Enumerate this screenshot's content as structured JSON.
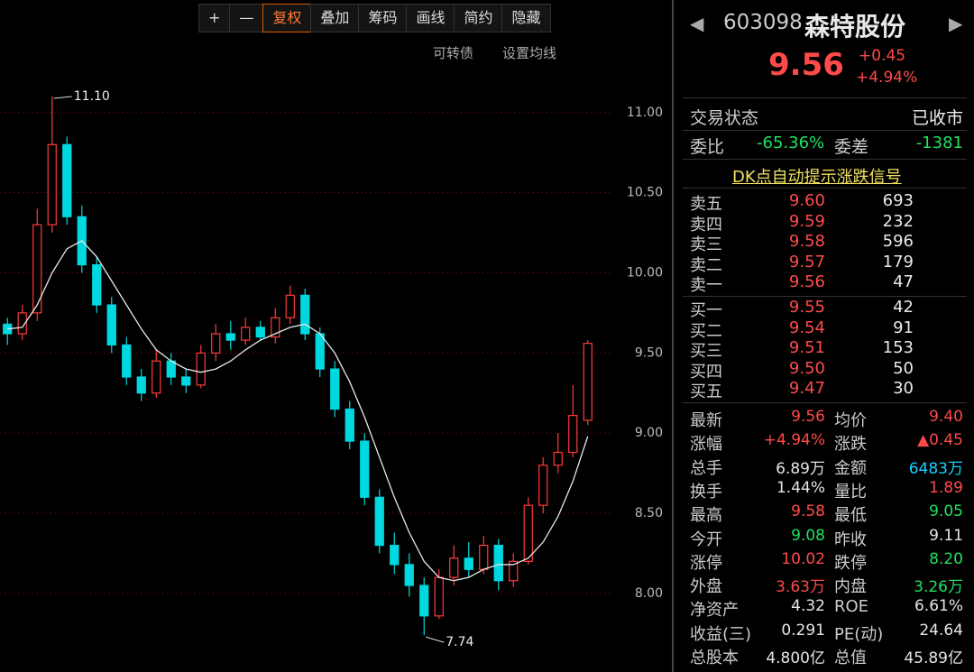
{
  "toolbar": {
    "buttons": [
      "+",
      "—",
      "复权",
      "叠加",
      "筹码",
      "画线",
      "简约",
      "隐藏"
    ],
    "links": [
      "可转债",
      "设置均线"
    ]
  },
  "chart_data": {
    "type": "candlestick",
    "open": [
      9.68,
      9.62,
      9.75,
      10.3,
      10.8,
      10.35,
      10.05,
      9.8,
      9.55,
      9.35,
      9.25,
      9.45,
      9.35,
      9.3,
      9.5,
      9.62,
      9.58,
      9.66,
      9.6,
      9.72,
      9.86,
      9.62,
      9.4,
      9.15,
      8.95,
      8.6,
      8.3,
      8.18,
      8.05,
      7.86,
      8.1,
      8.22,
      8.15,
      8.3,
      8.08,
      8.2,
      8.55,
      8.8,
      8.88,
      9.08
    ],
    "high": [
      9.72,
      9.8,
      10.4,
      11.1,
      10.85,
      10.42,
      10.1,
      9.85,
      9.6,
      9.4,
      9.52,
      9.5,
      9.4,
      9.55,
      9.68,
      9.7,
      9.72,
      9.7,
      9.78,
      9.92,
      9.9,
      9.66,
      9.45,
      9.2,
      9.0,
      8.65,
      8.38,
      8.25,
      8.1,
      8.15,
      8.3,
      8.32,
      8.36,
      8.34,
      8.25,
      8.6,
      8.85,
      9.0,
      9.3,
      9.58
    ],
    "low": [
      9.55,
      9.58,
      9.7,
      10.25,
      10.3,
      10.0,
      9.75,
      9.5,
      9.3,
      9.2,
      9.22,
      9.3,
      9.25,
      9.28,
      9.45,
      9.52,
      9.55,
      9.58,
      9.56,
      9.68,
      9.58,
      9.35,
      9.1,
      8.9,
      8.55,
      8.25,
      8.12,
      7.98,
      7.74,
      7.84,
      8.05,
      8.1,
      8.12,
      8.02,
      8.04,
      8.18,
      8.5,
      8.75,
      8.85,
      9.05
    ],
    "close": [
      9.62,
      9.75,
      10.3,
      10.8,
      10.35,
      10.05,
      9.8,
      9.55,
      9.35,
      9.25,
      9.45,
      9.35,
      9.3,
      9.5,
      9.62,
      9.58,
      9.66,
      9.6,
      9.72,
      9.86,
      9.62,
      9.4,
      9.15,
      8.95,
      8.6,
      8.3,
      8.18,
      8.05,
      7.86,
      8.1,
      8.22,
      8.15,
      8.3,
      8.08,
      8.2,
      8.55,
      8.8,
      8.88,
      9.11,
      9.56
    ],
    "ma": [
      9.65,
      9.66,
      9.8,
      10.0,
      10.15,
      10.2,
      10.1,
      9.95,
      9.8,
      9.65,
      9.52,
      9.45,
      9.4,
      9.38,
      9.4,
      9.45,
      9.52,
      9.58,
      9.62,
      9.66,
      9.68,
      9.62,
      9.5,
      9.32,
      9.1,
      8.85,
      8.6,
      8.38,
      8.2,
      8.1,
      8.08,
      8.1,
      8.15,
      8.18,
      8.18,
      8.22,
      8.32,
      8.48,
      8.7,
      8.98
    ],
    "annotations": [
      "11.10",
      "7.74"
    ],
    "ylim": [
      7.51,
      11.28
    ],
    "yticks": [
      {
        "value": 8,
        "label": "8.00"
      },
      {
        "value": 8.5,
        "label": "8.50"
      },
      {
        "value": 9,
        "label": "9.00"
      },
      {
        "value": 9.5,
        "label": "9.50"
      },
      {
        "value": 10,
        "label": "10.00"
      },
      {
        "value": 10.5,
        "label": "10.50"
      },
      {
        "value": 11,
        "label": "11.00"
      }
    ],
    "grid": true,
    "up_color": "#ff3b3b",
    "down_color": "#00d8e0",
    "ma_color": "#e8e8e8"
  },
  "quote": {
    "code": "603098",
    "name": "森特股份",
    "price": "9.56",
    "change": "+0.45",
    "change_pct": "+4.94%",
    "status_label": "交易状态",
    "status": "已收市",
    "ratio_label": "委比",
    "ratio": "-65.36%",
    "diff_label": "委差",
    "diff": "-1381",
    "signal_link": "DK点自动提示涨跌信号",
    "asks": [
      [
        "卖五",
        "9.60",
        "693"
      ],
      [
        "卖四",
        "9.59",
        "232"
      ],
      [
        "卖三",
        "9.58",
        "596"
      ],
      [
        "卖二",
        "9.57",
        "179"
      ],
      [
        "卖一",
        "9.56",
        "47"
      ]
    ],
    "bids": [
      [
        "买一",
        "9.55",
        "42"
      ],
      [
        "买二",
        "9.54",
        "91"
      ],
      [
        "买三",
        "9.51",
        "153"
      ],
      [
        "买四",
        "9.50",
        "50"
      ],
      [
        "买五",
        "9.47",
        "30"
      ]
    ],
    "tones": {
      "up": "#ff4a4a",
      "down": "#20e060",
      "flat": "#e6e6e6",
      "amount": "#18d0ff"
    },
    "stats": [
      [
        {
          "text": "最新"
        },
        {
          "text": "9.56",
          "tone": "up"
        },
        {
          "text": "均价"
        },
        {
          "text": "9.40",
          "tone": "up"
        }
      ],
      [
        {
          "text": "涨幅"
        },
        {
          "text": "+4.94%",
          "tone": "up"
        },
        {
          "text": "涨跌"
        },
        {
          "text": "▲0.45",
          "tone": "up"
        }
      ],
      [
        {
          "text": "总手"
        },
        {
          "text": "6.89万",
          "tone": "flat"
        },
        {
          "text": "金额"
        },
        {
          "text": "6483万",
          "tone": "amount"
        }
      ],
      [
        {
          "text": "换手"
        },
        {
          "text": "1.44%",
          "tone": "flat"
        },
        {
          "text": "量比"
        },
        {
          "text": "1.89",
          "tone": "up"
        }
      ],
      [
        {
          "text": "最高"
        },
        {
          "text": "9.58",
          "tone": "up"
        },
        {
          "text": "最低"
        },
        {
          "text": "9.05",
          "tone": "down"
        }
      ],
      [
        {
          "text": "今开"
        },
        {
          "text": "9.08",
          "tone": "down"
        },
        {
          "text": "昨收"
        },
        {
          "text": "9.11",
          "tone": "flat"
        }
      ],
      [
        {
          "text": "涨停"
        },
        {
          "text": "10.02",
          "tone": "up"
        },
        {
          "text": "跌停"
        },
        {
          "text": "8.20",
          "tone": "down"
        }
      ],
      [
        {
          "text": "外盘"
        },
        {
          "text": "3.63万",
          "tone": "up"
        },
        {
          "text": "内盘"
        },
        {
          "text": "3.26万",
          "tone": "down"
        }
      ],
      [
        {
          "text": "净资产"
        },
        {
          "text": "4.32",
          "tone": "flat"
        },
        {
          "text": "ROE"
        },
        {
          "text": "6.61%",
          "tone": "flat"
        }
      ],
      [
        {
          "text": "收益(三)"
        },
        {
          "text": "0.291",
          "tone": "flat"
        },
        {
          "text": "PE(动)"
        },
        {
          "text": "24.64",
          "tone": "flat"
        }
      ],
      [
        {
          "text": "总股本"
        },
        {
          "text": "4.800亿",
          "tone": "flat"
        },
        {
          "text": "总值"
        },
        {
          "text": "45.89亿",
          "tone": "flat"
        }
      ]
    ]
  }
}
